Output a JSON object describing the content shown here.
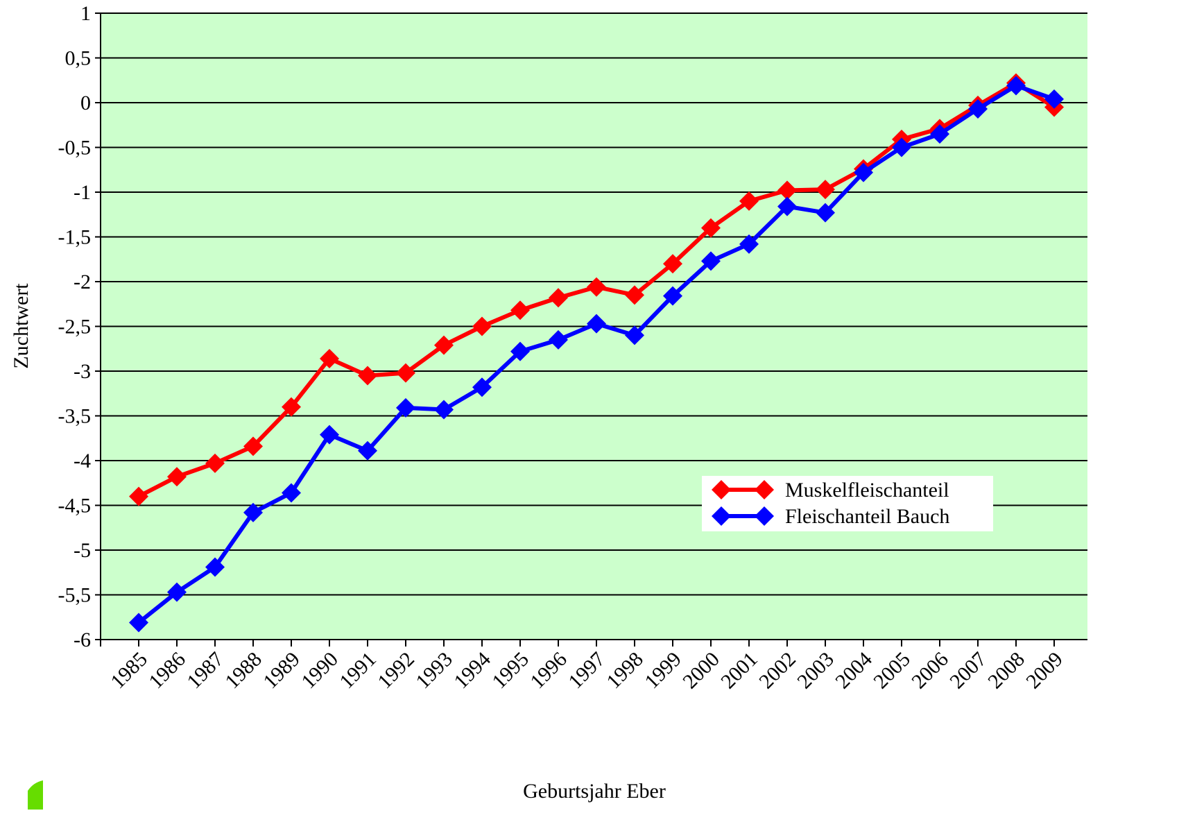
{
  "chart_data": {
    "type": "line",
    "x_label": "Geburtsjahr Eber",
    "y_label": "Zuchtwert",
    "categories": [
      "1985",
      "1986",
      "1987",
      "1988",
      "1989",
      "1990",
      "1991",
      "1992",
      "1993",
      "1994",
      "1995",
      "1996",
      "1997",
      "1998",
      "1999",
      "2000",
      "2001",
      "2002",
      "2003",
      "2004",
      "2005",
      "2006",
      "2007",
      "2008",
      "2009"
    ],
    "series": [
      {
        "name": "Muskelfleischanteil",
        "color": "#ff0000",
        "values": [
          -4.4,
          -4.18,
          -4.03,
          -3.84,
          -3.4,
          -2.86,
          -3.05,
          -3.02,
          -2.71,
          -2.5,
          -2.32,
          -2.18,
          -2.06,
          -2.15,
          -1.8,
          -1.4,
          -1.1,
          -0.98,
          -0.97,
          -0.74,
          -0.41,
          -0.29,
          -0.03,
          0.22,
          -0.05
        ]
      },
      {
        "name": "Fleischanteil Bauch",
        "color": "#0000ff",
        "values": [
          -5.81,
          -5.47,
          -5.19,
          -4.58,
          -4.36,
          -3.71,
          -3.89,
          -3.41,
          -3.43,
          -3.18,
          -2.78,
          -2.65,
          -2.47,
          -2.6,
          -2.16,
          -1.77,
          -1.58,
          -1.16,
          -1.23,
          -0.78,
          -0.5,
          -0.35,
          -0.07,
          0.19,
          0.04
        ]
      }
    ],
    "ylim": [
      -6,
      1
    ],
    "yticks": [
      -6,
      {
        "value": -5.5,
        "label": "-5,5"
      },
      -5,
      {
        "value": -4.5,
        "label": "-4,5"
      },
      -4,
      {
        "value": -3.5,
        "label": "-3,5"
      },
      -3,
      {
        "value": -2.5,
        "label": "-2,5"
      },
      -2,
      {
        "value": -1.5,
        "label": "-1,5"
      },
      -1,
      {
        "value": -0.5,
        "label": "-0,5"
      },
      0,
      {
        "value": 0.5,
        "label": "0,5"
      },
      1
    ],
    "grid": true,
    "background": "#ccffcc",
    "legend": "lower right"
  }
}
